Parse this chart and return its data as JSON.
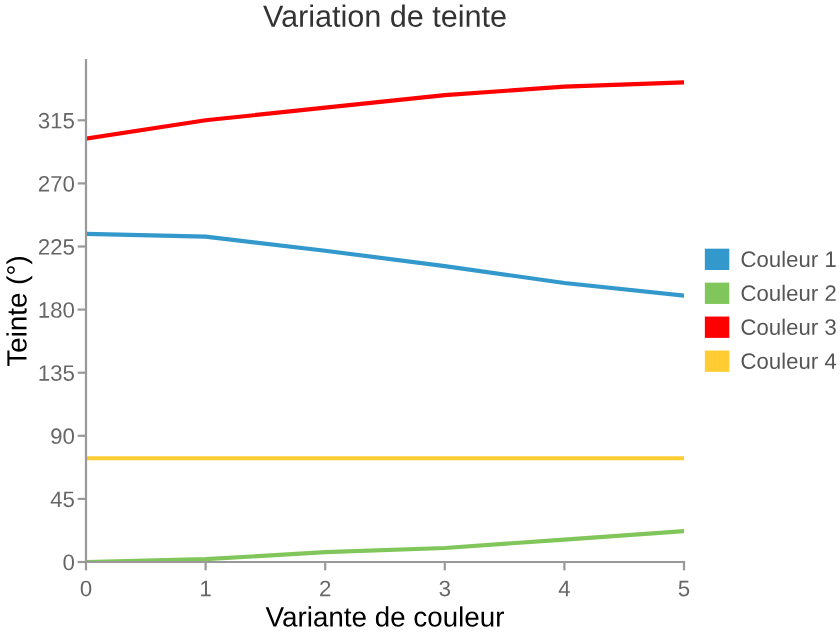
{
  "chart_data": {
    "type": "line",
    "title": "Variation de teinte",
    "xlabel": "Variante de couleur",
    "ylabel": "Teinte (°)",
    "x": [
      0,
      1,
      2,
      3,
      4,
      5
    ],
    "series": [
      {
        "name": "Couleur 1",
        "color": "#3399cc",
        "values": [
          234,
          232,
          222,
          211,
          199,
          190
        ]
      },
      {
        "name": "Couleur 2",
        "color": "#80c65a",
        "values": [
          0,
          2,
          7,
          10,
          16,
          22
        ]
      },
      {
        "name": "Couleur 3",
        "color": "#ff0000",
        "values": [
          302,
          315,
          324,
          333,
          339,
          342
        ]
      },
      {
        "name": "Couleur 4",
        "color": "#ffcc33",
        "values": [
          74,
          74,
          74,
          74,
          74,
          74
        ]
      }
    ],
    "xlim": [
      0,
      5
    ],
    "xticks": [
      0,
      1,
      2,
      3,
      4,
      5
    ],
    "ylim": [
      0,
      358
    ],
    "yticks": [
      0,
      45,
      90,
      135,
      180,
      225,
      270,
      315
    ],
    "grid": false,
    "legend": "right",
    "marker": "none",
    "line_style": "solid"
  }
}
